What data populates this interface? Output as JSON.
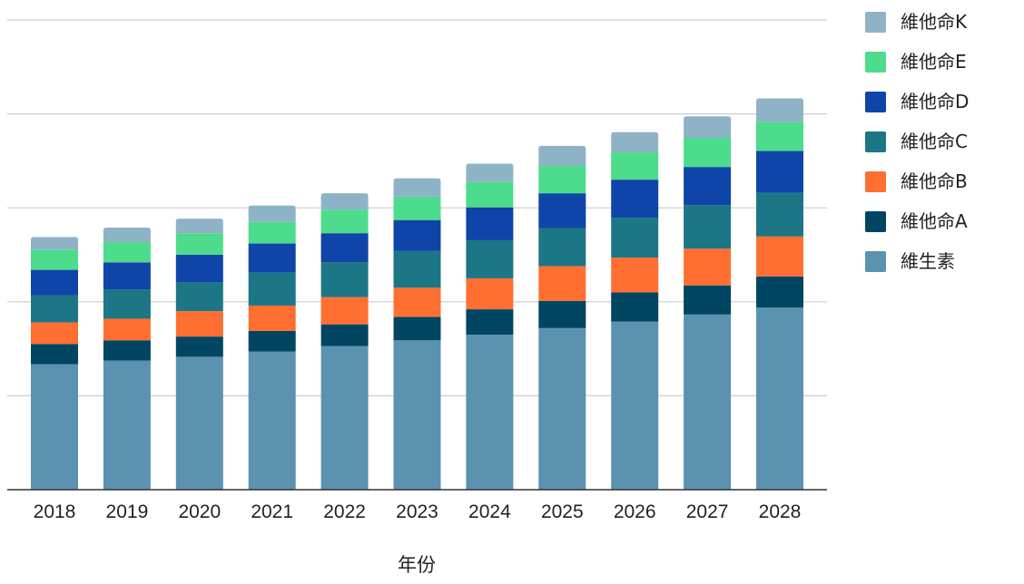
{
  "chart_data": {
    "type": "bar",
    "stacked": true,
    "xlabel": "年份",
    "ylabel": "",
    "ylim": [
      0,
      100
    ],
    "grid": true,
    "legend_position": "right",
    "categories": [
      "2018",
      "2019",
      "2020",
      "2021",
      "2022",
      "2023",
      "2024",
      "2025",
      "2026",
      "2027",
      "2028"
    ],
    "series": [
      {
        "name": "維生素",
        "color": "#5b92b0",
        "values": [
          26.7,
          27.5,
          28.3,
          29.4,
          30.6,
          31.8,
          33.0,
          34.4,
          35.8,
          37.3,
          38.8
        ]
      },
      {
        "name": "維他命A",
        "color": "#004561",
        "values": [
          4.3,
          4.3,
          4.3,
          4.4,
          4.6,
          5.0,
          5.4,
          5.8,
          6.2,
          6.2,
          6.6
        ]
      },
      {
        "name": "維他命B",
        "color": "#ff6f31",
        "values": [
          4.6,
          4.6,
          5.4,
          5.4,
          5.8,
          6.2,
          6.6,
          7.4,
          7.4,
          7.8,
          8.5
        ]
      },
      {
        "name": "維他命C",
        "color": "#1c7685",
        "values": [
          5.8,
          6.2,
          6.2,
          7.0,
          7.4,
          7.8,
          8.1,
          8.1,
          8.5,
          9.3,
          9.3
        ]
      },
      {
        "name": "維他命D",
        "color": "#0f45a8",
        "values": [
          5.4,
          5.8,
          5.8,
          6.2,
          6.2,
          6.6,
          7.0,
          7.4,
          8.1,
          8.1,
          8.9
        ]
      },
      {
        "name": "維他命E",
        "color": "#4cdc8b",
        "values": [
          4.3,
          4.3,
          4.6,
          4.6,
          5.0,
          5.0,
          5.4,
          5.8,
          5.8,
          6.2,
          6.2
        ]
      },
      {
        "name": "維他命K",
        "color": "#8fb3c6",
        "values": [
          2.7,
          3.1,
          3.1,
          3.5,
          3.5,
          3.9,
          3.9,
          4.3,
          4.3,
          4.6,
          5.0
        ]
      }
    ]
  }
}
